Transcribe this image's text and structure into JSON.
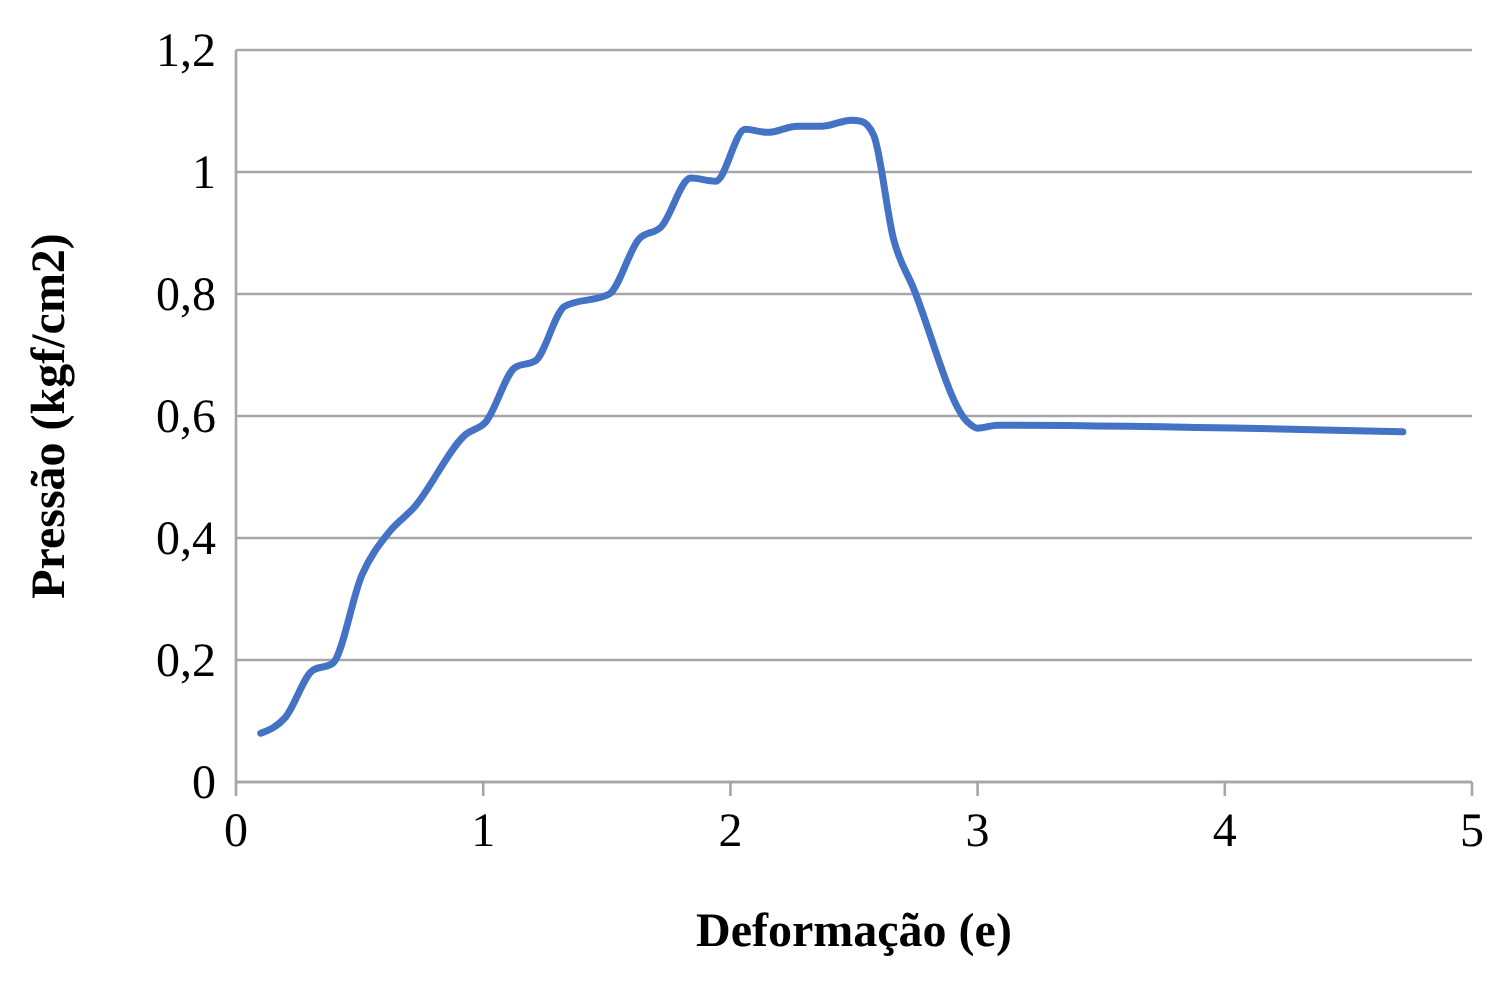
{
  "chart_data": {
    "type": "line",
    "xlabel": "Deformação (e)",
    "ylabel": "Pressão (kgf/cm2)",
    "xlim": [
      0,
      5
    ],
    "xticks": [
      0,
      1,
      2,
      3,
      4,
      5
    ],
    "ylim": [
      0,
      1.2
    ],
    "yticks": [
      0,
      {
        "value": 0.2,
        "label": "0,2"
      },
      {
        "value": 0.4,
        "label": "0,4"
      },
      {
        "value": 0.6,
        "label": "0,6"
      },
      {
        "value": 0.8,
        "label": "0,8"
      },
      1,
      {
        "value": 1.2,
        "label": "1,2"
      }
    ],
    "grid": "y",
    "marker": "none",
    "line_style": "solid",
    "x": [
      0.1,
      0.2,
      0.31,
      0.39,
      0.51,
      0.62,
      0.72,
      0.93,
      1.01,
      1.13,
      1.21,
      1.33,
      1.51,
      1.63,
      1.72,
      1.84,
      1.94,
      2.06,
      2.15,
      2.27,
      2.37,
      2.49,
      2.53,
      2.58,
      2.66,
      2.74,
      2.96,
      3.0,
      3.08,
      4.72
    ],
    "series": [
      {
        "color": "#4472c4",
        "values": [
          0.08,
          0.106,
          0.183,
          0.194,
          0.34,
          0.41,
          0.45,
          0.57,
          0.59,
          0.68,
          0.69,
          0.78,
          0.8,
          0.89,
          0.91,
          0.99,
          0.985,
          1.07,
          1.065,
          1.075,
          1.075,
          1.085,
          1.083,
          1.06,
          0.89,
          0.81,
          0.59,
          0.58,
          0.585,
          0.574
        ]
      }
    ]
  }
}
